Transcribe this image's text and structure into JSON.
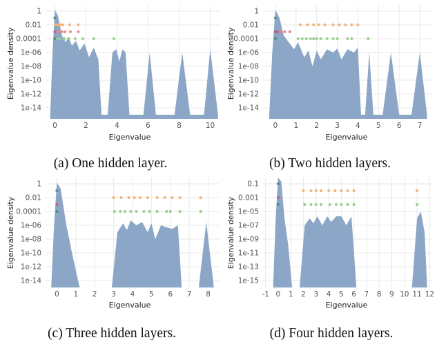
{
  "figure": {
    "captions": [
      "(a) One hidden layer.",
      "(b) Two hidden layers.",
      "(c) Three hidden layers.",
      "(d) Four hidden layers."
    ]
  },
  "colors": {
    "density_fill": "#8ba6c6",
    "grid": "#e9e9e9",
    "orange": "#f2b277",
    "red": "#e8878b",
    "purple": "#9b6a9e",
    "green": "#97cf8a",
    "teal": "#4e8e86"
  },
  "chart_data": [
    {
      "type": "area",
      "caption": "(a) One hidden layer.",
      "xlabel": "Eigenvalue",
      "ylabel": "Eigenvalue density",
      "yscale": "log",
      "xlim": [
        -0.6,
        10.6
      ],
      "ylim": [
        1e-15,
        10
      ],
      "xticks": [
        0,
        2,
        4,
        6,
        8,
        10
      ],
      "xtick_labels": [
        "0",
        "2",
        "4",
        "6",
        "8",
        "10"
      ],
      "yticks": [
        1,
        0.01,
        0.0001,
        1e-06,
        1e-08,
        1e-10,
        1e-12,
        1e-14
      ],
      "ytick_labels": [
        "1",
        "0.01",
        "0.0001",
        "1e-06",
        "1e-08",
        "1e-10",
        "1e-12",
        "1e-14"
      ],
      "density_envelope": [
        [
          -0.3,
          1e-15
        ],
        [
          -0.15,
          1e-06
        ],
        [
          0.0,
          1.5
        ],
        [
          0.2,
          0.2
        ],
        [
          0.45,
          0.0003
        ],
        [
          0.7,
          3e-05
        ],
        [
          0.85,
          0.0002
        ],
        [
          1.1,
          1e-05
        ],
        [
          1.35,
          5e-05
        ],
        [
          1.6,
          2e-06
        ],
        [
          1.9,
          2e-05
        ],
        [
          2.2,
          2e-07
        ],
        [
          2.5,
          5e-06
        ],
        [
          2.8,
          1e-07
        ],
        [
          3.0,
          1e-15
        ],
        [
          3.4,
          1e-15
        ],
        [
          3.7,
          1e-06
        ],
        [
          3.95,
          3e-06
        ],
        [
          4.15,
          5e-08
        ],
        [
          4.35,
          3e-06
        ],
        [
          4.55,
          1e-06
        ],
        [
          4.8,
          1e-15
        ],
        [
          5.7,
          1e-15
        ],
        [
          6.1,
          1e-06
        ],
        [
          6.5,
          1e-15
        ],
        [
          7.7,
          1e-15
        ],
        [
          8.2,
          1e-06
        ],
        [
          8.7,
          1e-15
        ],
        [
          9.6,
          1e-15
        ],
        [
          10.0,
          3e-06
        ],
        [
          10.5,
          1e-15
        ]
      ],
      "markers": [
        {
          "color": "orange",
          "y": 0.01,
          "x": [
            0.05,
            0.2,
            0.35,
            0.5,
            0.95,
            1.5
          ]
        },
        {
          "color": "teal",
          "y": 0.1,
          "x": [
            0.0
          ]
        },
        {
          "color": "red",
          "y": 0.001,
          "x": [
            0.1,
            0.25,
            0.45,
            0.65,
            1.0,
            1.5
          ]
        },
        {
          "color": "purple",
          "y": 0.001,
          "x": [
            0.0
          ]
        },
        {
          "color": "green",
          "y": 0.0001,
          "x": [
            0.15,
            0.35,
            0.6,
            0.9,
            1.3,
            1.8,
            2.5,
            3.8
          ]
        },
        {
          "color": "teal",
          "y": 0.0001,
          "x": [
            0.0
          ]
        }
      ]
    },
    {
      "type": "area",
      "caption": "(b) Two hidden layers.",
      "xlabel": "Eigenvalue",
      "ylabel": "Eigenvalue density",
      "yscale": "log",
      "xlim": [
        -0.6,
        7.6
      ],
      "ylim": [
        1e-15,
        10
      ],
      "xticks": [
        0,
        1,
        2,
        3,
        4,
        5,
        6,
        7
      ],
      "xtick_labels": [
        "0",
        "1",
        "2",
        "3",
        "4",
        "5",
        "6",
        "7"
      ],
      "yticks": [
        1,
        0.01,
        0.0001,
        1e-06,
        1e-08,
        1e-10,
        1e-12,
        1e-14
      ],
      "ytick_labels": [
        "1",
        "0.01",
        "0.0001",
        "1e-06",
        "1e-08",
        "1e-10",
        "1e-12",
        "1e-14"
      ],
      "density_envelope": [
        [
          -0.3,
          1e-15
        ],
        [
          -0.15,
          1e-06
        ],
        [
          0.0,
          1.5
        ],
        [
          0.2,
          0.1
        ],
        [
          0.4,
          0.0003
        ],
        [
          0.65,
          3e-05
        ],
        [
          0.9,
          3e-06
        ],
        [
          1.1,
          3e-05
        ],
        [
          1.4,
          2e-07
        ],
        [
          1.6,
          2e-06
        ],
        [
          1.8,
          1e-08
        ],
        [
          2.0,
          2e-06
        ],
        [
          2.2,
          1e-07
        ],
        [
          2.5,
          3e-06
        ],
        [
          2.8,
          1e-06
        ],
        [
          3.0,
          4e-06
        ],
        [
          3.2,
          1e-07
        ],
        [
          3.5,
          3e-06
        ],
        [
          3.8,
          1e-06
        ],
        [
          4.0,
          5e-06
        ],
        [
          4.15,
          1e-15
        ],
        [
          4.35,
          1e-15
        ],
        [
          4.55,
          1e-06
        ],
        [
          4.75,
          1e-15
        ],
        [
          5.2,
          1e-15
        ],
        [
          5.6,
          1e-06
        ],
        [
          6.0,
          1e-15
        ],
        [
          6.6,
          1e-15
        ],
        [
          7.0,
          1e-06
        ],
        [
          7.35,
          1e-15
        ]
      ],
      "markers": [
        {
          "color": "orange",
          "y": 0.01,
          "x": [
            1.2,
            1.55,
            1.85,
            2.1,
            2.4,
            2.8,
            3.1,
            3.4,
            3.7,
            4.0
          ]
        },
        {
          "color": "teal",
          "y": 0.1,
          "x": [
            0.0
          ]
        },
        {
          "color": "red",
          "y": 0.001,
          "x": [
            0.05,
            0.15,
            0.3,
            0.45,
            0.7
          ]
        },
        {
          "color": "purple",
          "y": 0.001,
          "x": [
            0.0,
            0.1
          ]
        },
        {
          "color": "green",
          "y": 0.0001,
          "x": [
            1.1,
            1.3,
            1.5,
            1.7,
            1.85,
            2.0,
            2.2,
            2.5,
            2.8,
            3.0,
            3.5,
            3.7,
            4.5
          ]
        },
        {
          "color": "teal",
          "y": 0.0001,
          "x": [
            0.0
          ]
        }
      ]
    },
    {
      "type": "area",
      "caption": "(c) Three hidden layers.",
      "xlabel": "Eigenvalue",
      "ylabel": "Eigenvalue density",
      "yscale": "log",
      "xlim": [
        -0.6,
        8.6
      ],
      "ylim": [
        1e-15,
        10
      ],
      "xticks": [
        0,
        1,
        2,
        3,
        4,
        5,
        6,
        7,
        8
      ],
      "xtick_labels": [
        "0",
        "1",
        "2",
        "3",
        "4",
        "5",
        "6",
        "7",
        "8"
      ],
      "yticks": [
        1,
        0.01,
        0.0001,
        1e-06,
        1e-08,
        1e-10,
        1e-12,
        1e-14
      ],
      "ytick_labels": [
        "1",
        "0.01",
        "0.0001",
        "1e-06",
        "1e-08",
        "1e-10",
        "1e-12",
        "1e-14"
      ],
      "density_envelope": [
        [
          -0.3,
          1e-15
        ],
        [
          -0.15,
          1e-06
        ],
        [
          0.0,
          1.5
        ],
        [
          0.2,
          0.2
        ],
        [
          0.5,
          1e-06
        ],
        [
          0.8,
          1e-10
        ],
        [
          1.2,
          1e-15
        ],
        [
          2.9,
          1e-15
        ],
        [
          3.2,
          1e-07
        ],
        [
          3.5,
          2e-06
        ],
        [
          3.7,
          2e-07
        ],
        [
          3.9,
          5e-06
        ],
        [
          4.2,
          1e-06
        ],
        [
          4.5,
          3e-06
        ],
        [
          4.8,
          1e-07
        ],
        [
          5.0,
          2e-06
        ],
        [
          5.2,
          1e-08
        ],
        [
          5.5,
          1e-06
        ],
        [
          5.8,
          5e-07
        ],
        [
          6.1,
          3e-07
        ],
        [
          6.4,
          1e-06
        ],
        [
          6.6,
          1e-15
        ],
        [
          7.5,
          1e-15
        ],
        [
          7.9,
          3e-06
        ],
        [
          8.3,
          1e-15
        ]
      ],
      "markers": [
        {
          "color": "orange",
          "y": 0.01,
          "x": [
            3.0,
            3.4,
            3.8,
            4.1,
            4.4,
            4.8,
            5.3,
            5.7,
            6.1,
            6.5,
            7.6
          ]
        },
        {
          "color": "teal",
          "y": 0.1,
          "x": [
            0.0
          ]
        },
        {
          "color": "red",
          "y": 0.001,
          "x": [
            0.05
          ]
        },
        {
          "color": "purple",
          "y": 0.001,
          "x": [
            0.0
          ]
        },
        {
          "color": "green",
          "y": 0.0001,
          "x": [
            3.05,
            3.35,
            3.6,
            3.9,
            4.2,
            4.6,
            4.9,
            5.3,
            5.8,
            6.0,
            6.5,
            7.6
          ]
        },
        {
          "color": "teal",
          "y": 0.0001,
          "x": [
            0.0
          ]
        }
      ]
    },
    {
      "type": "area",
      "caption": "(d) Four hidden layers.",
      "xlabel": "Eigenvalue",
      "ylabel": "Eigenvalue density",
      "yscale": "log",
      "xlim": [
        -1.2,
        12.2
      ],
      "ylim": [
        1e-16,
        10
      ],
      "xticks": [
        -1,
        0,
        1,
        2,
        3,
        4,
        5,
        6,
        7,
        8,
        9,
        10,
        11,
        12
      ],
      "xtick_labels": [
        "-1",
        "0",
        "1",
        "2",
        "3",
        "4",
        "5",
        "6",
        "7",
        "8",
        "9",
        "10",
        "11",
        "12"
      ],
      "yticks": [
        0.1,
        0.001,
        1e-05,
        1e-07,
        1e-09,
        1e-11,
        1e-13,
        1e-15
      ],
      "ytick_labels": [
        "0.1",
        "0.001",
        "1e-05",
        "1e-07",
        "1e-09",
        "1e-11",
        "1e-13",
        "1e-15"
      ],
      "density_envelope": [
        [
          -0.4,
          1e-16
        ],
        [
          -0.2,
          1e-06
        ],
        [
          0.0,
          1.5
        ],
        [
          0.25,
          0.2
        ],
        [
          0.5,
          1e-06
        ],
        [
          0.8,
          1e-10
        ],
        [
          1.1,
          1e-16
        ],
        [
          1.7,
          1e-16
        ],
        [
          2.1,
          1e-07
        ],
        [
          2.5,
          1e-06
        ],
        [
          2.8,
          2e-07
        ],
        [
          3.1,
          2e-06
        ],
        [
          3.5,
          1e-07
        ],
        [
          3.9,
          2e-06
        ],
        [
          4.2,
          3e-07
        ],
        [
          4.6,
          2e-06
        ],
        [
          5.0,
          2e-06
        ],
        [
          5.4,
          1e-07
        ],
        [
          5.8,
          2e-06
        ],
        [
          6.2,
          1e-16
        ],
        [
          10.6,
          1e-16
        ],
        [
          11.0,
          1e-06
        ],
        [
          11.3,
          1e-05
        ],
        [
          11.6,
          1e-08
        ],
        [
          11.8,
          1e-16
        ]
      ],
      "markers": [
        {
          "color": "orange",
          "y": 0.01,
          "x": [
            2.0,
            2.6,
            3.0,
            3.4,
            4.0,
            4.5,
            5.0,
            5.5,
            6.0,
            11.0
          ]
        },
        {
          "color": "teal",
          "y": 0.1,
          "x": [
            0.0
          ]
        },
        {
          "color": "red",
          "y": 0.001,
          "x": [
            0.05
          ]
        },
        {
          "color": "purple",
          "y": 0.001,
          "x": [
            0.0
          ]
        },
        {
          "color": "green",
          "y": 0.0001,
          "x": [
            2.1,
            2.6,
            3.0,
            3.4,
            4.1,
            4.6,
            5.0,
            5.5,
            6.0,
            11.0
          ]
        },
        {
          "color": "teal",
          "y": 0.0001,
          "x": [
            0.0
          ]
        }
      ]
    }
  ]
}
